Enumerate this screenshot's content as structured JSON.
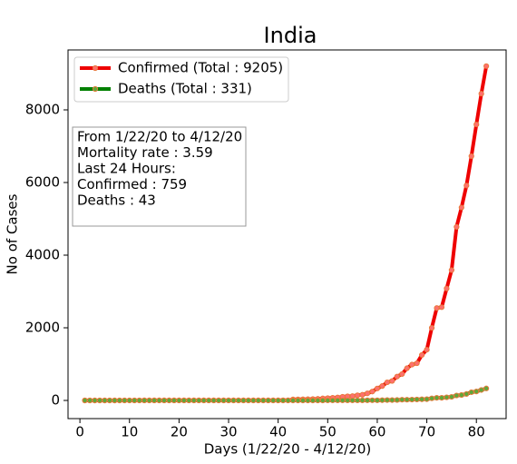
{
  "chart_data": {
    "type": "line",
    "title": "India",
    "xlabel": "Days (1/22/20 - 4/12/20)",
    "ylabel": "No of Cases",
    "x": [
      1,
      2,
      3,
      4,
      5,
      6,
      7,
      8,
      9,
      10,
      11,
      12,
      13,
      14,
      15,
      16,
      17,
      18,
      19,
      20,
      21,
      22,
      23,
      24,
      25,
      26,
      27,
      28,
      29,
      30,
      31,
      32,
      33,
      34,
      35,
      36,
      37,
      38,
      39,
      40,
      41,
      42,
      43,
      44,
      45,
      46,
      47,
      48,
      49,
      50,
      51,
      52,
      53,
      54,
      55,
      56,
      57,
      58,
      59,
      60,
      61,
      62,
      63,
      64,
      65,
      66,
      67,
      68,
      69,
      70,
      71,
      72,
      73,
      74,
      75,
      76,
      77,
      78,
      79,
      80,
      81,
      82
    ],
    "series": [
      {
        "name": "Confirmed (Total : 9205)",
        "color": "#ee0000",
        "marker_color": "#ff6f6f",
        "marker_edge": "#e87a3c",
        "values": [
          0,
          0,
          0,
          0,
          0,
          0,
          0,
          0,
          1,
          1,
          1,
          2,
          3,
          3,
          3,
          3,
          3,
          3,
          3,
          3,
          3,
          3,
          3,
          3,
          3,
          3,
          3,
          3,
          3,
          3,
          3,
          3,
          3,
          3,
          3,
          3,
          3,
          3,
          3,
          3,
          5,
          5,
          28,
          30,
          31,
          34,
          39,
          43,
          56,
          62,
          73,
          82,
          102,
          113,
          119,
          142,
          156,
          194,
          244,
          330,
          396,
          499,
          536,
          657,
          727,
          887,
          987,
          1024,
          1251,
          1397,
          1998,
          2543,
          2567,
          3082,
          3588,
          4778,
          5311,
          5916,
          6725,
          7598,
          8446,
          9205
        ]
      },
      {
        "name": "Deaths (Total : 331)",
        "color": "#008000",
        "marker_color": "#5fa83a",
        "marker_edge": "#e87a3c",
        "values": [
          0,
          0,
          0,
          0,
          0,
          0,
          0,
          0,
          0,
          0,
          0,
          0,
          0,
          0,
          0,
          0,
          0,
          0,
          0,
          0,
          0,
          0,
          0,
          0,
          0,
          0,
          0,
          0,
          0,
          0,
          0,
          0,
          0,
          0,
          0,
          0,
          0,
          0,
          0,
          0,
          0,
          0,
          0,
          0,
          0,
          0,
          0,
          0,
          0,
          1,
          1,
          2,
          2,
          2,
          2,
          3,
          3,
          4,
          5,
          4,
          7,
          10,
          10,
          12,
          20,
          20,
          24,
          27,
          32,
          35,
          58,
          72,
          72,
          86,
          99,
          136,
          150,
          178,
          226,
          246,
          288,
          331
        ]
      }
    ],
    "annotation": [
      "From 1/22/20 to 4/12/20",
      "Mortality rate : 3.59",
      "Last 24 Hours:",
      "Confirmed : 759",
      "Deaths : 43"
    ],
    "xlim": [
      -2.4,
      86
    ],
    "xticks": [
      0,
      10,
      20,
      30,
      40,
      50,
      60,
      70,
      80
    ],
    "ylim": [
      -500,
      9650
    ],
    "yticks": [
      0,
      2000,
      4000,
      6000,
      8000
    ],
    "legend": "upper left",
    "grid": false
  }
}
